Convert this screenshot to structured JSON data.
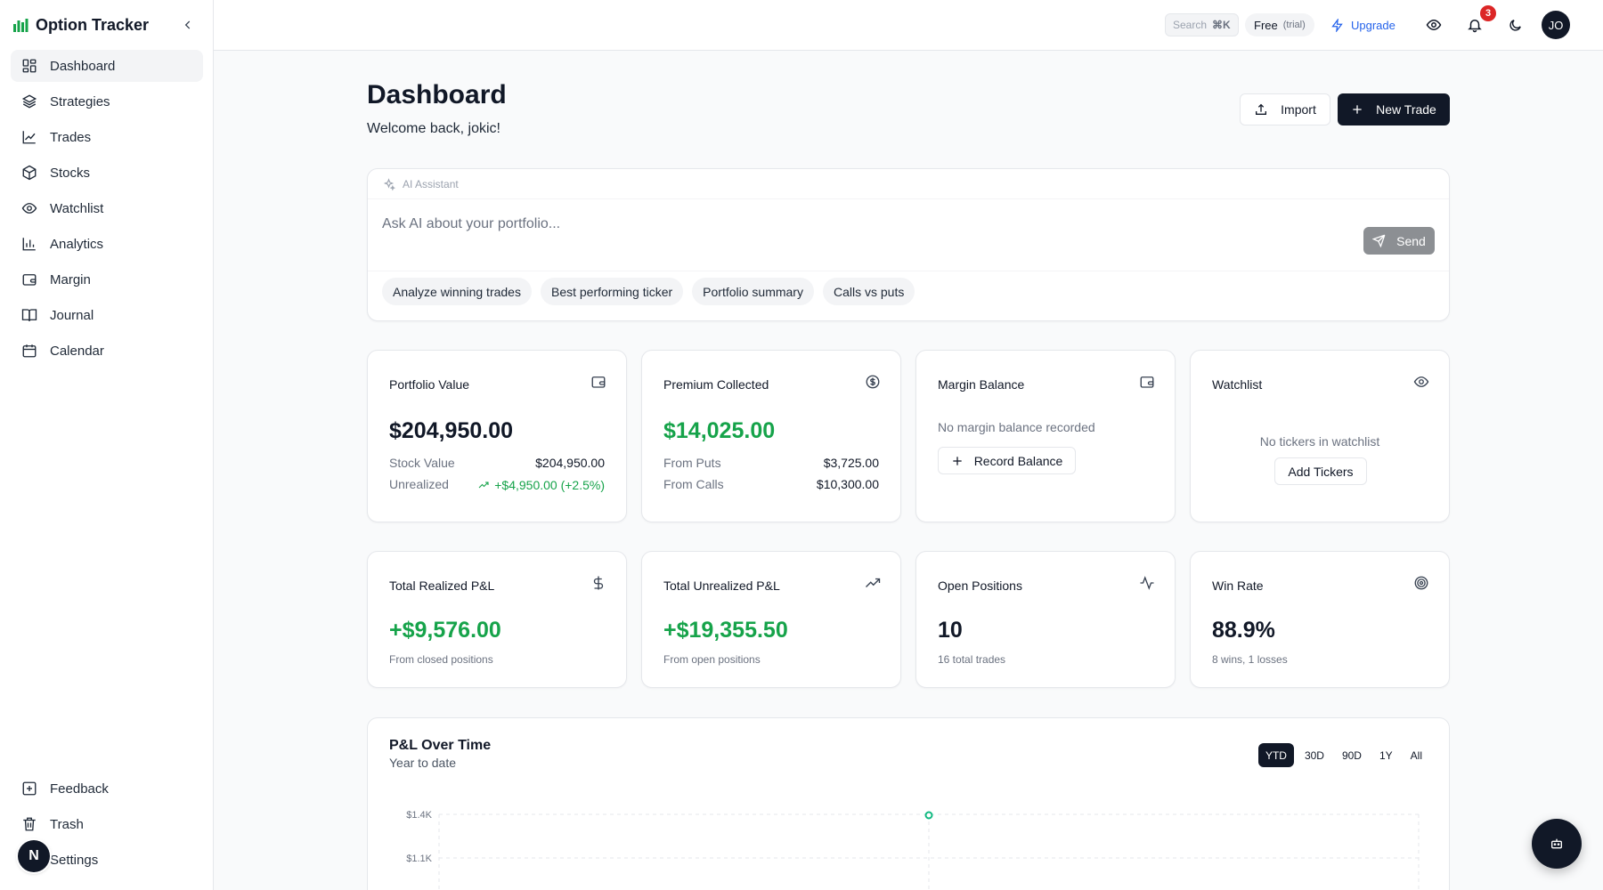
{
  "app": {
    "name": "Option Tracker"
  },
  "sidebar": {
    "items": [
      {
        "label": "Dashboard",
        "icon": "dashboard-icon",
        "active": true
      },
      {
        "label": "Strategies",
        "icon": "layers-icon"
      },
      {
        "label": "Trades",
        "icon": "line-chart-icon"
      },
      {
        "label": "Stocks",
        "icon": "box-icon"
      },
      {
        "label": "Watchlist",
        "icon": "eye-icon"
      },
      {
        "label": "Analytics",
        "icon": "bar-chart-icon"
      },
      {
        "label": "Margin",
        "icon": "wallet-icon"
      },
      {
        "label": "Journal",
        "icon": "book-icon"
      },
      {
        "label": "Calendar",
        "icon": "calendar-icon"
      }
    ],
    "bottom_items": [
      {
        "label": "Feedback",
        "icon": "feedback-icon"
      },
      {
        "label": "Trash",
        "icon": "trash-icon"
      },
      {
        "label": "Settings",
        "icon": "settings-icon"
      }
    ],
    "floating_avatar": "N"
  },
  "header": {
    "search_label": "Search",
    "search_shortcut": "⌘K",
    "plan": "Free",
    "plan_note": "(trial)",
    "upgrade_label": "Upgrade",
    "notification_count": "3",
    "user_initials": "JO"
  },
  "page": {
    "title": "Dashboard",
    "subtitle": "Welcome back, jokic!",
    "import_label": "Import",
    "new_trade_label": "New Trade"
  },
  "ai": {
    "label": "AI Assistant",
    "placeholder": "Ask AI about your portfolio...",
    "send_label": "Send",
    "suggestions": [
      "Analyze winning trades",
      "Best performing ticker",
      "Portfolio summary",
      "Calls vs puts"
    ]
  },
  "summary_cards": {
    "portfolio": {
      "title": "Portfolio Value",
      "value": "$204,950.00",
      "stock_label": "Stock Value",
      "stock_value": "$204,950.00",
      "unrealized_label": "Unrealized",
      "unrealized_value": "+$4,950.00 (+2.5%)"
    },
    "premium": {
      "title": "Premium Collected",
      "value": "$14,025.00",
      "puts_label": "From Puts",
      "puts_value": "$3,725.00",
      "calls_label": "From Calls",
      "calls_value": "$10,300.00"
    },
    "margin": {
      "title": "Margin Balance",
      "empty_text": "No margin balance recorded",
      "button_label": "Record Balance"
    },
    "watchlist": {
      "title": "Watchlist",
      "empty_text": "No tickers in watchlist",
      "button_label": "Add Tickers"
    }
  },
  "stats": {
    "realized": {
      "title": "Total Realized P&L",
      "value": "+$9,576.00",
      "sub": "From closed positions"
    },
    "unrealized": {
      "title": "Total Unrealized P&L",
      "value": "+$19,355.50",
      "sub": "From open positions"
    },
    "open": {
      "title": "Open Positions",
      "value": "10",
      "sub": "16 total trades"
    },
    "winrate": {
      "title": "Win Rate",
      "value": "88.9%",
      "sub": "8 wins, 1 losses"
    }
  },
  "chart_data": {
    "type": "line",
    "title": "P&L Over Time",
    "subtitle": "Year to date",
    "ranges": [
      "YTD",
      "30D",
      "90D",
      "1Y",
      "All"
    ],
    "active_range": "YTD",
    "y_ticks": [
      "$1.4K",
      "$1.1K"
    ],
    "points": [
      {
        "y": 1400
      }
    ],
    "colors": {
      "line": "#10b981"
    }
  }
}
